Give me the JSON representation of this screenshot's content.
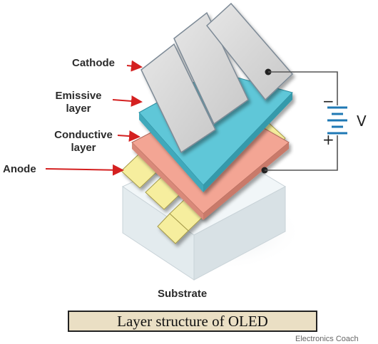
{
  "labels": {
    "cathode": "Cathode",
    "emissive_line1": "Emissive",
    "emissive_line2": "layer",
    "conductive_line1": "Conductive",
    "conductive_line2": "layer",
    "anode": "Anode",
    "substrate": "Substrate"
  },
  "battery": {
    "voltage": "V",
    "minus": "−",
    "plus": "+"
  },
  "caption": "Layer structure of OLED",
  "watermark": "Electronics Coach",
  "colors": {
    "cathode": "#d6d6d6",
    "emissive": "#5ec7d8",
    "conductive": "#f3a594",
    "anode": "#f6ee9e",
    "substrate": "#eef4f6",
    "arrow": "#d42020",
    "caption_bg": "#eadfc4"
  }
}
